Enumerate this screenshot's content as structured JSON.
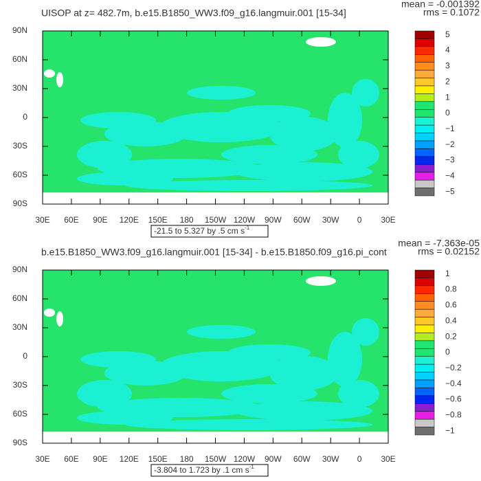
{
  "panels": [
    {
      "title": "UISOP at z= 482.7m, b.e15.B1850_WW3.f09_g16.langmuir.001 [15-34]",
      "mean": "mean = -0.001392",
      "rms": "rms = 0.1072",
      "range": "-21.5 to 5.327 by .5 cm s",
      "range_exp": "-1",
      "colorbar_labels": [
        "5",
        "4",
        "3",
        "2",
        "1",
        "0",
        "−1",
        "−2",
        "−3",
        "−4",
        "−5"
      ]
    },
    {
      "title": "b.e15.B1850_WW3.f09_g16.langmuir.001 [15-34] - b.e15.B1850.f09_g16.pi_cont",
      "mean": "mean = -7.363e-05",
      "rms": "rms = 0.02152",
      "range": "-3.804 to 1.723 by .1 cm s",
      "range_exp": "-1",
      "colorbar_labels": [
        "1",
        "0.8",
        "0.6",
        "0.4",
        "0.2",
        "0",
        "−0.2",
        "−0.4",
        "−0.6",
        "−0.8",
        "−1"
      ]
    }
  ],
  "colorbar_colors": [
    "#a00000",
    "#dc0000",
    "#ff2800",
    "#ff6400",
    "#ff8c1e",
    "#ffaa3c",
    "#ffc828",
    "#ffee00",
    "#b4ee1e",
    "#1ee66e",
    "#1ee66e",
    "#1ef0d2",
    "#00f0f0",
    "#00d2ff",
    "#00a0ff",
    "#0064ff",
    "#0028f0",
    "#8c1ed2",
    "#e61ee6",
    "#c8c8c8",
    "#6e6e6e"
  ],
  "lat_labels": [
    "90N",
    "60N",
    "30N",
    "0",
    "30S",
    "60S",
    "90S"
  ],
  "lon_labels": [
    "30E",
    "60E",
    "90E",
    "120E",
    "150E",
    "180",
    "150W",
    "120W",
    "90W",
    "60W",
    "30W",
    "0",
    "30E"
  ]
}
